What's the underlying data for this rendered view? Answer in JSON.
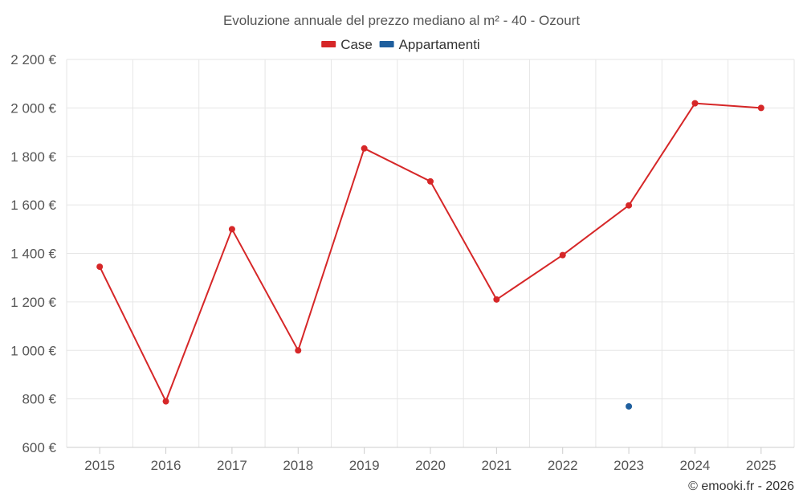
{
  "chart_data": {
    "type": "line",
    "title": "Evoluzione annuale del prezzo mediano al m² - 40 - Ozourt",
    "xlabel": "",
    "ylabel": "",
    "categories": [
      "2015",
      "2016",
      "2017",
      "2018",
      "2019",
      "2020",
      "2021",
      "2022",
      "2023",
      "2024",
      "2025"
    ],
    "ylim": [
      600,
      2200
    ],
    "yticks": [
      600,
      800,
      1000,
      1200,
      1400,
      1600,
      1800,
      2000,
      2200
    ],
    "ytick_labels": [
      "600 €",
      "800 €",
      "1 000 €",
      "1 200 €",
      "1 400 €",
      "1 600 €",
      "1 800 €",
      "2 000 €",
      "2 200 €"
    ],
    "grid": true,
    "legend_position": "top-center",
    "series": [
      {
        "name": "Case",
        "color": "#d62728",
        "values": [
          1345,
          790,
          1500,
          1000,
          1833,
          1697,
          1210,
          1393,
          1598,
          2019,
          2000
        ]
      },
      {
        "name": "Appartamenti",
        "color": "#1f5f9e",
        "values": [
          null,
          null,
          null,
          null,
          null,
          null,
          null,
          null,
          769,
          null,
          null
        ]
      }
    ],
    "credit": "© emooki.fr - 2026"
  }
}
